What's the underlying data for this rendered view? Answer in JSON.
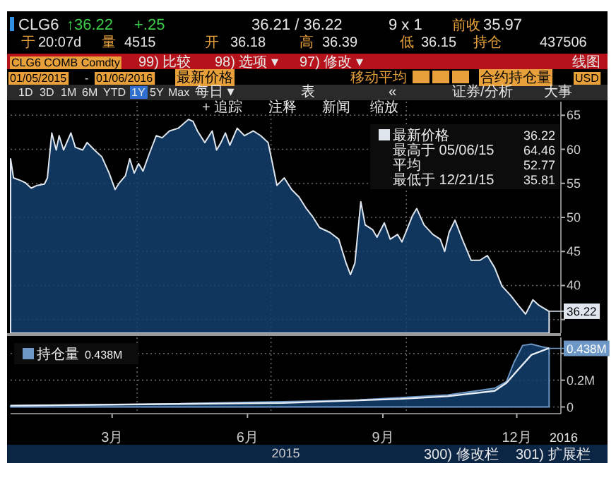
{
  "chart_data": [
    {
      "type": "other",
      "annotations": [
        "CLG6",
        "↑36.22",
        "+.25",
        "36.21 / 36.22",
        "9 x 1",
        "前收",
        "35.97",
        "于",
        "20:07d",
        "量",
        "4515",
        "开",
        "36.18",
        "高",
        "36.39",
        "低",
        "36.15",
        "持仓",
        "437506",
        "CLG6 COMB Comdty",
        "99) 比较",
        "98) 选项 ▾",
        "97) 修改 ▾",
        "线图",
        "01/05/2015",
        "-",
        "01/06/2016",
        "最新价格",
        "移动平均",
        "合约持仓量",
        "USD",
        "1D",
        "3D",
        "1M",
        "6M",
        "YTD",
        "1Y",
        "5Y",
        "Max",
        "每日 ▾",
        "表",
        "«",
        "证券/分析",
        "大事"
      ]
    },
    {
      "type": "area",
      "xlim": [
        "2015-01-05",
        "2016-01-14"
      ],
      "ylim": [
        33,
        67
      ],
      "yticks": [
        {
          "value": 35,
          "label": null
        },
        40,
        45,
        50,
        55,
        60,
        65
      ],
      "tick_labels": "y",
      "grid": "y",
      "legend": "top right",
      "ref_lines": [
        {
          "axis": "x",
          "value": "2015-04-01",
          "line_style": "dotted"
        },
        {
          "axis": "x",
          "value": "2015-07-01",
          "line_style": "dotted"
        },
        {
          "axis": "x",
          "value": "2015-10-01",
          "line_style": "dotted"
        }
      ],
      "series": [
        {
          "name": "最新价格",
          "color": "#dfe6ee",
          "x": [
            "2015-01-05",
            "2015-01-07",
            "2015-01-12",
            "2015-01-15",
            "2015-01-19",
            "2015-01-23",
            "2015-01-28",
            "2015-01-30",
            "2015-02-02",
            "2015-02-05",
            "2015-02-07",
            "2015-02-10",
            "2015-02-15",
            "2015-02-18",
            "2015-02-23",
            "2015-02-26",
            "2015-03-03",
            "2015-03-08",
            "2015-03-13",
            "2015-03-17",
            "2015-03-20",
            "2015-03-24",
            "2015-03-27",
            "2015-03-30",
            "2015-04-02",
            "2015-04-05",
            "2015-04-09",
            "2015-04-14",
            "2015-04-18",
            "2015-04-23",
            "2015-04-29",
            "2015-05-06",
            "2015-05-09",
            "2015-05-12",
            "2015-05-17",
            "2015-05-22",
            "2015-05-25",
            "2015-05-28",
            "2015-05-31",
            "2015-06-03",
            "2015-06-08",
            "2015-06-13",
            "2015-06-19",
            "2015-06-24",
            "2015-06-29",
            "2015-07-02",
            "2015-07-05",
            "2015-07-10",
            "2015-07-15",
            "2015-07-20",
            "2015-07-25",
            "2015-07-29",
            "2015-08-03",
            "2015-08-10",
            "2015-08-16",
            "2015-08-21",
            "2015-08-24",
            "2015-08-27",
            "2015-08-31",
            "2015-09-03",
            "2015-09-08",
            "2015-09-11",
            "2015-09-16",
            "2015-09-20",
            "2015-09-25",
            "2015-09-28",
            "2015-10-05",
            "2015-10-08",
            "2015-10-13",
            "2015-10-19",
            "2015-10-24",
            "2015-10-27",
            "2015-10-30",
            "2015-11-03",
            "2015-11-08",
            "2015-11-14",
            "2015-11-20",
            "2015-11-25",
            "2015-11-30",
            "2015-12-05",
            "2015-12-11",
            "2015-12-16",
            "2015-12-21",
            "2015-12-26",
            "2015-12-30",
            "2016-01-06"
          ],
          "values": [
            58.6,
            55.8,
            55.4,
            55.1,
            54.3,
            54.7,
            54.9,
            55.8,
            62.4,
            59.9,
            62.0,
            59.9,
            62.4,
            60.3,
            59.9,
            61.0,
            59.9,
            58.9,
            56.5,
            54.1,
            55.1,
            56.1,
            58.6,
            56.5,
            57.9,
            56.8,
            59.2,
            62.0,
            61.7,
            62.7,
            63.1,
            64.4,
            64.1,
            62.7,
            61.0,
            62.7,
            59.9,
            61.0,
            62.4,
            60.6,
            63.1,
            62.0,
            62.7,
            62.0,
            61.0,
            57.9,
            54.7,
            55.8,
            54.1,
            53.0,
            51.3,
            50.2,
            48.5,
            47.8,
            46.8,
            43.3,
            41.6,
            43.3,
            52.3,
            48.9,
            48.2,
            47.1,
            49.2,
            46.8,
            47.5,
            46.4,
            50.2,
            51.3,
            48.9,
            47.5,
            46.8,
            45.0,
            47.8,
            49.6,
            46.8,
            43.7,
            43.7,
            44.4,
            42.6,
            39.9,
            38.5,
            37.1,
            35.8,
            37.9,
            37.1,
            36.2
          ]
        }
      ],
      "annotations": [
        "36.22",
        "最高于 05/06/15",
        "64.46",
        "平均",
        "52.77",
        "最低于 12/21/15",
        "35.81",
        {
          "text": "36.22",
          "x": "2016-01-06",
          "y": 36.22
        },
        "+ 追踪",
        "注释",
        "新闻",
        "缩放"
      ]
    },
    {
      "type": "area",
      "xlim": [
        "2015-01-05",
        "2016-01-14"
      ],
      "ylim": [
        -0.05,
        0.52
      ],
      "yticks": [
        0,
        {
          "value": 0.2,
          "label": "0.2M"
        },
        {
          "value": 0.4,
          "label": null
        }
      ],
      "xticks": [
        {
          "value": "2015-03-15",
          "label": "3月"
        },
        {
          "value": "2015-06-15",
          "label": "6月"
        },
        {
          "value": "2015-09-15",
          "label": "9月"
        },
        {
          "value": "2015-12-15",
          "label": "12月"
        }
      ],
      "xlabel": "2015",
      "grid": "y",
      "legend": "top left",
      "ref_lines": [
        {
          "axis": "x",
          "value": "2015-04-01",
          "line_style": "dotted"
        },
        {
          "axis": "x",
          "value": "2015-07-01",
          "line_style": "dotted"
        },
        {
          "axis": "x",
          "value": "2015-10-01",
          "line_style": "dotted"
        }
      ],
      "series": [
        {
          "name": "持仓量",
          "type": "area",
          "color": "#6d97c4",
          "x": [
            "2015-01-05",
            "2015-04-04",
            "2015-07-09",
            "2015-08-26",
            "2015-09-27",
            "2015-10-29",
            "2015-11-30",
            "2015-12-08",
            "2015-12-13",
            "2015-12-19",
            "2015-12-25",
            "2016-01-01",
            "2016-01-06"
          ],
          "values": [
            0.01,
            0.02,
            0.04,
            0.05,
            0.07,
            0.09,
            0.14,
            0.19,
            0.33,
            0.46,
            0.47,
            0.45,
            0.44
          ]
        },
        {
          "type": "line",
          "color": "#e8eef5",
          "x": [
            "2015-01-05",
            "2015-07-09",
            "2015-09-27",
            "2015-10-29",
            "2015-11-30",
            "2015-12-08",
            "2015-12-16",
            "2015-12-25",
            "2016-01-06"
          ],
          "values": [
            0.01,
            0.03,
            0.06,
            0.08,
            0.12,
            0.18,
            0.28,
            0.39,
            0.44
          ]
        }
      ],
      "annotations": [
        "0.438M",
        {
          "text": "0.438M",
          "x": "2016-01-06",
          "y": 0.438
        },
        "2016",
        "300) 修改栏",
        "301) 扩展栏"
      ]
    }
  ]
}
